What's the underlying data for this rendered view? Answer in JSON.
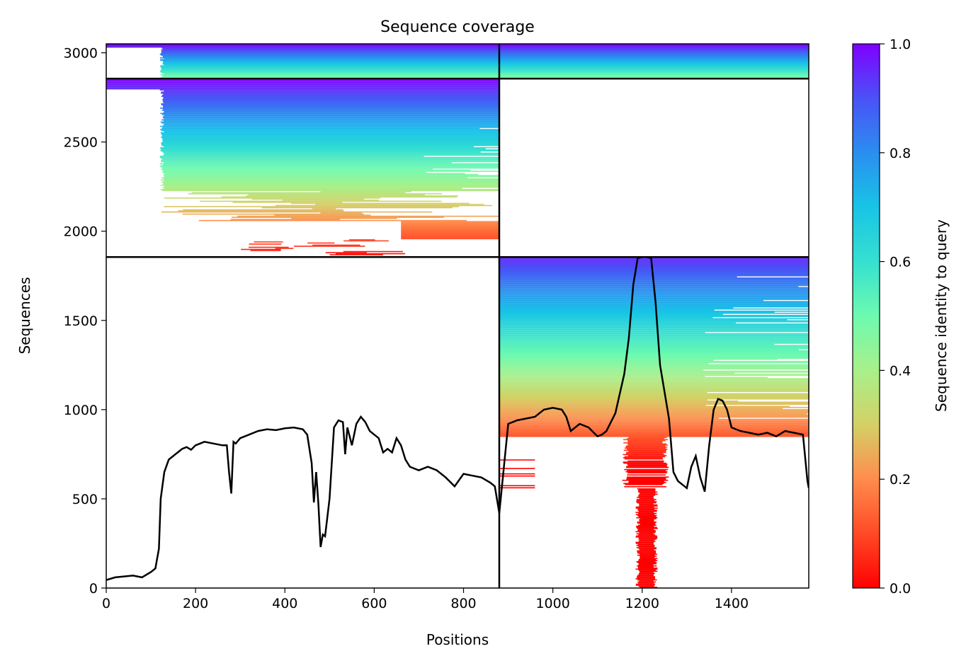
{
  "chart_data": {
    "type": "heatmap",
    "title": "Sequence coverage",
    "xlabel": "Positions",
    "ylabel": "Sequences",
    "xlim": [
      0,
      1573
    ],
    "ylim": [
      0,
      3050
    ],
    "xticks": [
      0,
      200,
      400,
      600,
      800,
      1000,
      1200,
      1400
    ],
    "xtick_labels": [
      "0",
      "200",
      "400",
      "600",
      "800",
      "1000",
      "1200",
      "1400"
    ],
    "yticks": [
      0,
      500,
      1000,
      1500,
      2000,
      2500,
      3000
    ],
    "ytick_labels": [
      "0",
      "500",
      "1000",
      "1500",
      "2000",
      "2500",
      "3000"
    ],
    "grid": false,
    "legend": "none",
    "chain_boundaries_x": [
      880
    ],
    "chain_boundaries_y": [
      1855,
      2855
    ],
    "colorbar": {
      "label": "Sequence identity to query",
      "range": [
        0.0,
        1.0
      ],
      "ticks": [
        0.0,
        0.2,
        0.4,
        0.6,
        0.8,
        1.0
      ],
      "tick_labels": [
        "0.0",
        "0.2",
        "0.4",
        "0.6",
        "0.8",
        "1.0"
      ],
      "colormap": "rainbow_r"
    },
    "blocks": [
      {
        "name": "chain-A-only",
        "x_range": [
          0,
          880
        ],
        "seq_range": [
          1855,
          2855
        ],
        "identity_top": 1.0,
        "identity_bottom": 0.0,
        "fill_top": 2855,
        "fill_bottom_main": 2230,
        "fill_bottom_tail": 1870,
        "start_pos_top": 0,
        "start_pos_main": 120
      },
      {
        "name": "chain-B-only",
        "x_range": [
          880,
          1573
        ],
        "seq_range": [
          0,
          1855
        ],
        "identity_top": 1.0,
        "identity_bottom": 0.0,
        "fill_top": 1855,
        "fill_bottom_main": 850,
        "fill_bottom_tail": 0
      },
      {
        "name": "paired",
        "x_range": [
          0,
          1573
        ],
        "seq_range": [
          2855,
          3050
        ],
        "identity_top": 1.0,
        "identity_bottom": 0.45
      }
    ],
    "coverage_line": {
      "x": [
        0,
        20,
        40,
        60,
        80,
        100,
        110,
        118,
        122,
        130,
        140,
        150,
        160,
        170,
        180,
        190,
        200,
        210,
        220,
        240,
        260,
        270,
        275,
        280,
        285,
        290,
        300,
        320,
        340,
        360,
        380,
        400,
        420,
        440,
        450,
        460,
        465,
        470,
        475,
        480,
        485,
        490,
        500,
        510,
        520,
        530,
        535,
        540,
        550,
        560,
        570,
        580,
        590,
        600,
        610,
        620,
        630,
        640,
        650,
        660,
        670,
        680,
        700,
        720,
        740,
        760,
        780,
        800,
        820,
        840,
        860,
        870,
        880,
        900,
        920,
        940,
        960,
        980,
        1000,
        1020,
        1030,
        1040,
        1060,
        1080,
        1100,
        1110,
        1120,
        1140,
        1160,
        1170,
        1180,
        1190,
        1200,
        1210,
        1220,
        1230,
        1240,
        1250,
        1260,
        1270,
        1280,
        1290,
        1300,
        1310,
        1320,
        1330,
        1340,
        1350,
        1360,
        1370,
        1380,
        1390,
        1400,
        1420,
        1440,
        1460,
        1480,
        1500,
        1520,
        1540,
        1560,
        1570,
        1573
      ],
      "y": [
        45,
        60,
        65,
        70,
        60,
        90,
        110,
        220,
        500,
        650,
        720,
        740,
        760,
        780,
        790,
        775,
        800,
        810,
        820,
        810,
        800,
        800,
        650,
        530,
        820,
        810,
        840,
        860,
        880,
        890,
        885,
        895,
        900,
        890,
        860,
        700,
        480,
        650,
        470,
        230,
        300,
        290,
        500,
        900,
        940,
        930,
        750,
        900,
        800,
        920,
        960,
        930,
        880,
        860,
        840,
        760,
        780,
        760,
        840,
        800,
        720,
        680,
        660,
        680,
        660,
        620,
        570,
        640,
        630,
        620,
        590,
        570,
        420,
        920,
        940,
        950,
        960,
        1000,
        1010,
        1000,
        960,
        880,
        920,
        900,
        850,
        860,
        880,
        980,
        1200,
        1400,
        1700,
        1850,
        1855,
        1855,
        1850,
        1600,
        1250,
        1100,
        950,
        650,
        600,
        580,
        560,
        680,
        740,
        620,
        540,
        800,
        1000,
        1060,
        1050,
        1000,
        900,
        880,
        870,
        860,
        870,
        850,
        880,
        870,
        860,
        600,
        560
      ]
    }
  }
}
